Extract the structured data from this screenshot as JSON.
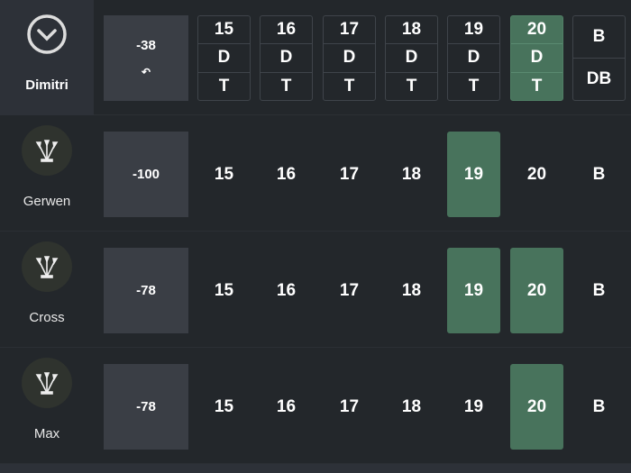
{
  "columns": [
    "15",
    "16",
    "17",
    "18",
    "19",
    "20",
    "B"
  ],
  "header": {
    "player": "Dimitri",
    "icon": "chevron-down-circle-icon",
    "score": "-38",
    "undo_icon": "undo-icon",
    "segments": [
      {
        "labels": [
          "15",
          "D",
          "T"
        ],
        "closed": false
      },
      {
        "labels": [
          "16",
          "D",
          "T"
        ],
        "closed": false
      },
      {
        "labels": [
          "17",
          "D",
          "T"
        ],
        "closed": false
      },
      {
        "labels": [
          "18",
          "D",
          "T"
        ],
        "closed": false
      },
      {
        "labels": [
          "19",
          "D",
          "T"
        ],
        "closed": false
      },
      {
        "labels": [
          "20",
          "D",
          "T"
        ],
        "closed": true
      },
      {
        "labels": [
          "B",
          "DB"
        ],
        "closed": false
      }
    ]
  },
  "players": [
    {
      "name": "Gerwen",
      "score": "-100",
      "icon": "darts-icon",
      "closed": [
        "19"
      ]
    },
    {
      "name": "Cross",
      "score": "-78",
      "icon": "darts-icon",
      "closed": [
        "19",
        "20"
      ]
    },
    {
      "name": "Max",
      "score": "-78",
      "icon": "darts-icon",
      "closed": [
        "20"
      ]
    }
  ],
  "colors": {
    "background": "#23272b",
    "accent": "#48735c",
    "score_box": "#3a3e45"
  }
}
